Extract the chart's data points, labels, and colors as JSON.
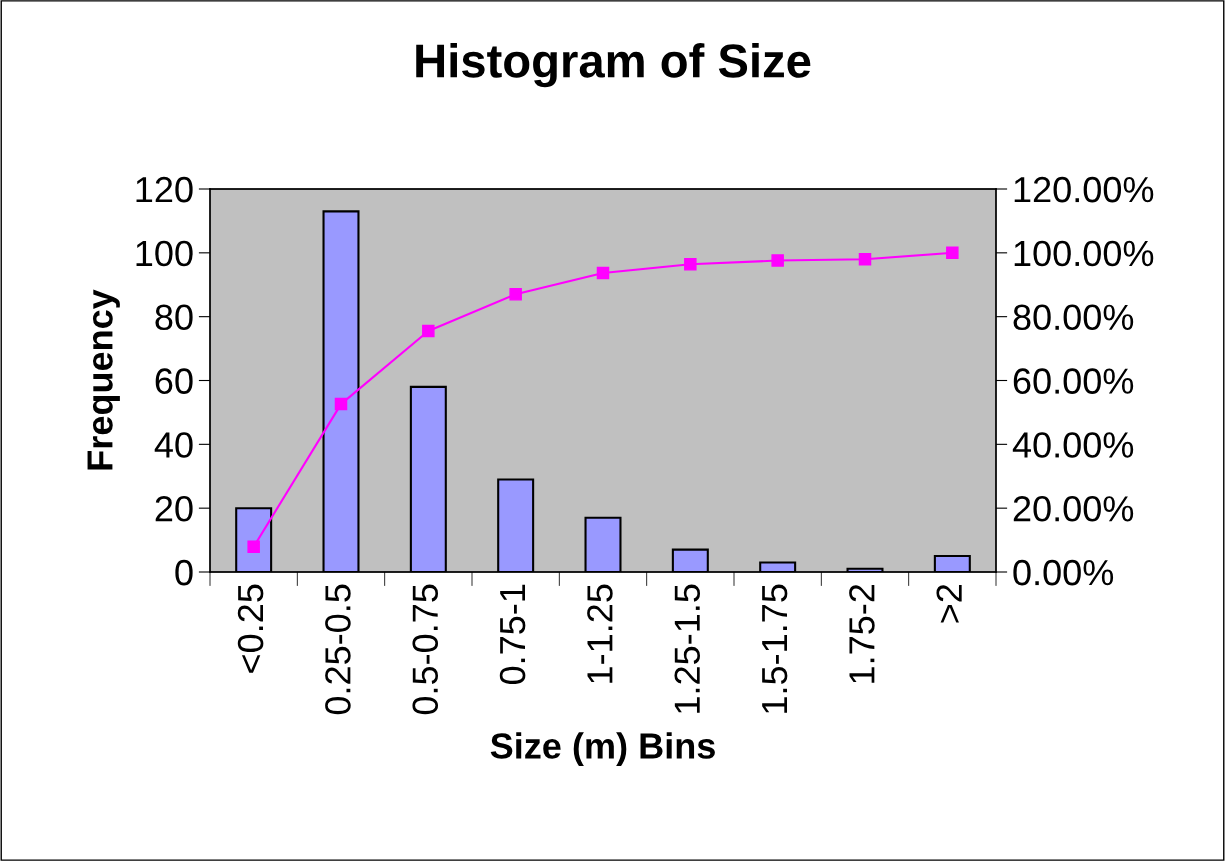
{
  "chart_data": {
    "type": "bar",
    "title": "Histogram of Size",
    "xlabel": "Size (m) Bins",
    "ylabel": "Frequency",
    "categories": [
      "<0.25",
      "0.25-0.5",
      "0.5-0.75",
      "0.75-1",
      "1-1.25",
      "1.25-1.5",
      "1.5-1.75",
      "1.75-2",
      ">2"
    ],
    "series": [
      {
        "color": "#9999ff",
        "values": [
          20,
          113,
          58,
          29,
          17,
          7,
          3,
          1,
          5
        ]
      },
      {
        "type": "line",
        "axis": "y2",
        "color": "#ff00ff",
        "values": [
          7.9,
          52.6,
          75.5,
          87.0,
          93.7,
          96.4,
          97.6,
          98.0,
          100
        ]
      }
    ],
    "ylim": [
      0,
      120
    ],
    "yticks": [
      0,
      20,
      40,
      60,
      80,
      100,
      120
    ],
    "y2lim": [
      0,
      120
    ],
    "y2ticks": [
      {
        "value": 0,
        "label": "0.00%"
      },
      {
        "value": 20,
        "label": "20.00%"
      },
      {
        "value": 40,
        "label": "40.00%"
      },
      {
        "value": 60,
        "label": "60.00%"
      },
      {
        "value": 80,
        "label": "80.00%"
      },
      {
        "value": 100,
        "label": "100.00%"
      },
      {
        "value": 120,
        "label": "120.00%"
      }
    ],
    "marker": "square",
    "grid": false,
    "legend": false
  }
}
